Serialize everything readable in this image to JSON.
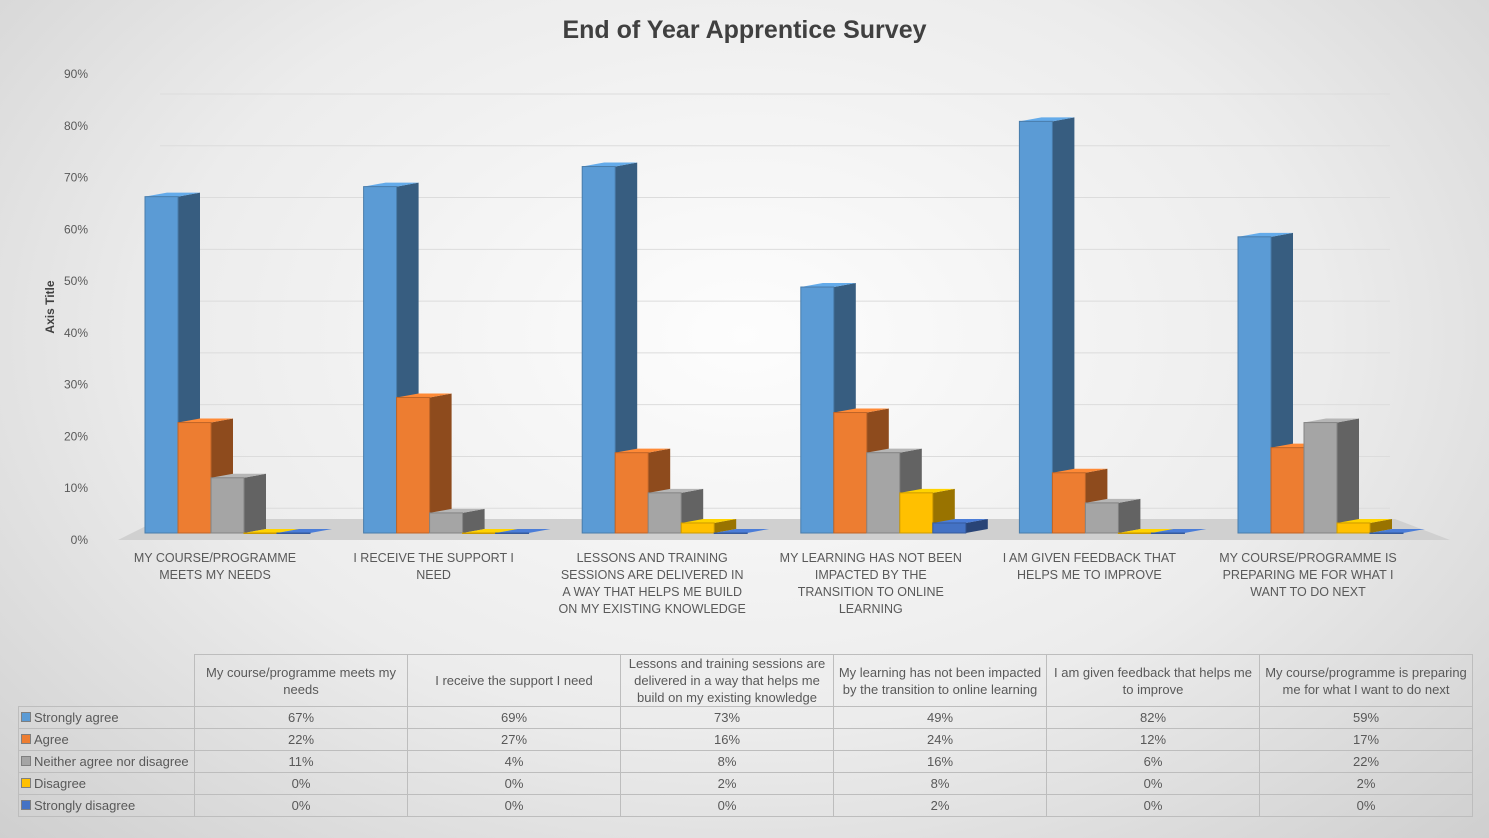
{
  "chart_data": {
    "type": "bar",
    "title": "End of Year Apprentice Survey",
    "ylabel": "Axis Title",
    "xlabel": "",
    "ylim": [
      0,
      0.9
    ],
    "yticks": [
      "0%",
      "10%",
      "20%",
      "30%",
      "40%",
      "50%",
      "60%",
      "70%",
      "80%",
      "90%"
    ],
    "grid": true,
    "style": "3d-clustered-column with data table",
    "categories": [
      "My course/programme meets my needs",
      "I receive the support I need",
      "Lessons and training sessions are delivered in a way that helps me build on my existing knowledge",
      "My learning has not been impacted by the transition to online learning",
      "I am given feedback that helps me to improve",
      "My course/programme is preparing me for what I want to do next"
    ],
    "series": [
      {
        "name": "Strongly agree",
        "color": "#5B9BD5",
        "values": [
          0.67,
          0.69,
          0.73,
          0.49,
          0.82,
          0.59
        ],
        "labels": [
          "67%",
          "69%",
          "73%",
          "49%",
          "82%",
          "59%"
        ]
      },
      {
        "name": "Agree",
        "color": "#ED7D31",
        "values": [
          0.22,
          0.27,
          0.16,
          0.24,
          0.12,
          0.17
        ],
        "labels": [
          "22%",
          "27%",
          "16%",
          "24%",
          "12%",
          "17%"
        ]
      },
      {
        "name": "Neither agree nor disagree",
        "color": "#A5A5A5",
        "values": [
          0.11,
          0.04,
          0.08,
          0.16,
          0.06,
          0.22
        ],
        "labels": [
          "11%",
          "4%",
          "8%",
          "16%",
          "6%",
          "22%"
        ]
      },
      {
        "name": "Disagree",
        "color": "#FFC000",
        "values": [
          0,
          0,
          0.02,
          0.08,
          0,
          0.02
        ],
        "labels": [
          "0%",
          "0%",
          "2%",
          "8%",
          "0%",
          "2%"
        ]
      },
      {
        "name": "Strongly disagree",
        "color": "#4472C4",
        "values": [
          0,
          0,
          0,
          0.02,
          0,
          0
        ],
        "labels": [
          "0%",
          "0%",
          "0%",
          "2%",
          "0%",
          "0%"
        ]
      }
    ]
  }
}
